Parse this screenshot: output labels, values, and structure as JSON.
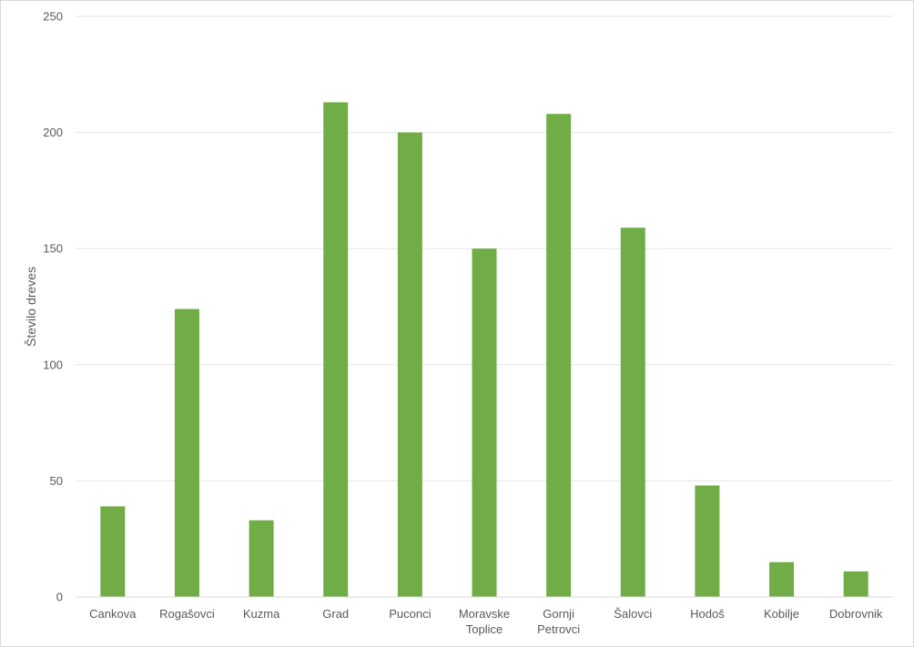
{
  "chart_data": {
    "type": "bar",
    "title": "",
    "xlabel": "",
    "ylabel": "Število dreves",
    "categories": [
      [
        "Cankova"
      ],
      [
        "Rogašovci"
      ],
      [
        "Kuzma"
      ],
      [
        "Grad"
      ],
      [
        "Puconci"
      ],
      [
        "Moravske",
        "Toplice"
      ],
      [
        "Gornji",
        "Petrovci"
      ],
      [
        "Šalovci"
      ],
      [
        "Hodoš"
      ],
      [
        "Kobilje"
      ],
      [
        "Dobrovnik"
      ]
    ],
    "values": [
      39,
      124,
      33,
      213,
      200,
      150,
      208,
      159,
      48,
      15,
      11
    ],
    "ylim": [
      0,
      250
    ],
    "yticks": [
      0,
      50,
      100,
      150,
      200,
      250
    ],
    "grid": true,
    "legend": "none",
    "colors": {
      "bar": "#70ad47",
      "grid": "#e6e6e6",
      "axis": "#d9d9d9",
      "text": "#595959"
    }
  }
}
